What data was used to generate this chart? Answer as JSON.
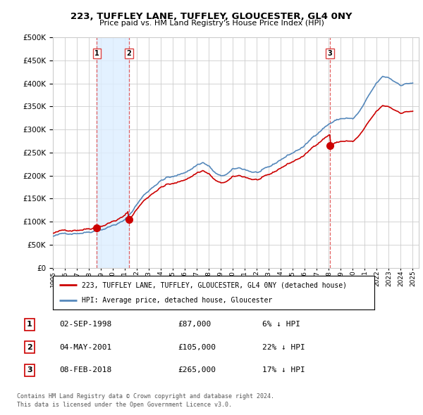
{
  "title": "223, TUFFLEY LANE, TUFFLEY, GLOUCESTER, GL4 0NY",
  "subtitle": "Price paid vs. HM Land Registry's House Price Index (HPI)",
  "ylabel_ticks": [
    0,
    50000,
    100000,
    150000,
    200000,
    250000,
    300000,
    350000,
    400000,
    450000,
    500000
  ],
  "ylim": [
    0,
    500000
  ],
  "xlim_start": 1995.0,
  "xlim_end": 2025.5,
  "sale_points": [
    {
      "year": 1998.67,
      "price": 87000,
      "label": "1"
    },
    {
      "year": 2001.33,
      "price": 105000,
      "label": "2"
    },
    {
      "year": 2018.1,
      "price": 265000,
      "label": "3"
    }
  ],
  "legend_red": "223, TUFFLEY LANE, TUFFLEY, GLOUCESTER, GL4 0NY (detached house)",
  "legend_blue": "HPI: Average price, detached house, Gloucester",
  "table": [
    {
      "num": "1",
      "date": "02-SEP-1998",
      "price": "£87,000",
      "note": "6% ↓ HPI"
    },
    {
      "num": "2",
      "date": "04-MAY-2001",
      "price": "£105,000",
      "note": "22% ↓ HPI"
    },
    {
      "num": "3",
      "date": "08-FEB-2018",
      "price": "£265,000",
      "note": "17% ↓ HPI"
    }
  ],
  "footnote1": "Contains HM Land Registry data © Crown copyright and database right 2024.",
  "footnote2": "This data is licensed under the Open Government Licence v3.0.",
  "red_color": "#cc0000",
  "blue_color": "#5588bb",
  "shade_color": "#ddeeff",
  "vline_color": "#dd4444",
  "background_color": "#ffffff",
  "grid_color": "#cccccc"
}
